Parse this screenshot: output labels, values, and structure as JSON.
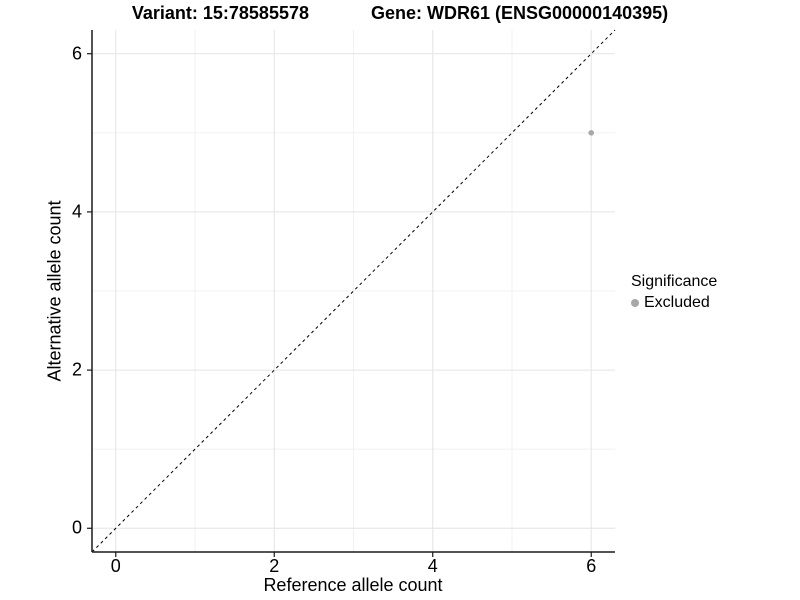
{
  "chart_data": {
    "type": "scatter",
    "title_left": "Variant: 15:78585578",
    "title_right": "Gene: WDR61 (ENSG00000140395)",
    "xlabel": "Reference allele count",
    "ylabel": "Alternative allele count",
    "xlim": [
      -0.3,
      6.3
    ],
    "ylim": [
      -0.3,
      6.3
    ],
    "x_ticks": [
      0,
      2,
      4,
      6
    ],
    "y_ticks": [
      0,
      2,
      4,
      6
    ],
    "grid": {
      "major_color": "#e4e4e4",
      "minor_color": "#f1f1f1",
      "minor_at_tick_midpoints": true
    },
    "axis_line_color": "#1a1a1a",
    "identity_line": {
      "style": "dashed",
      "color": "#000000",
      "from": [
        -0.3,
        -0.3
      ],
      "to": [
        6.3,
        6.3
      ]
    },
    "series": [
      {
        "name": "Excluded",
        "color": "#a8a8a8",
        "point_radius": 2.8,
        "points": [
          {
            "x": 6,
            "y": 5
          }
        ]
      }
    ],
    "legend": {
      "title": "Significance",
      "position": "right",
      "items": [
        {
          "label": "Excluded",
          "color": "#a8a8a8"
        }
      ]
    }
  }
}
